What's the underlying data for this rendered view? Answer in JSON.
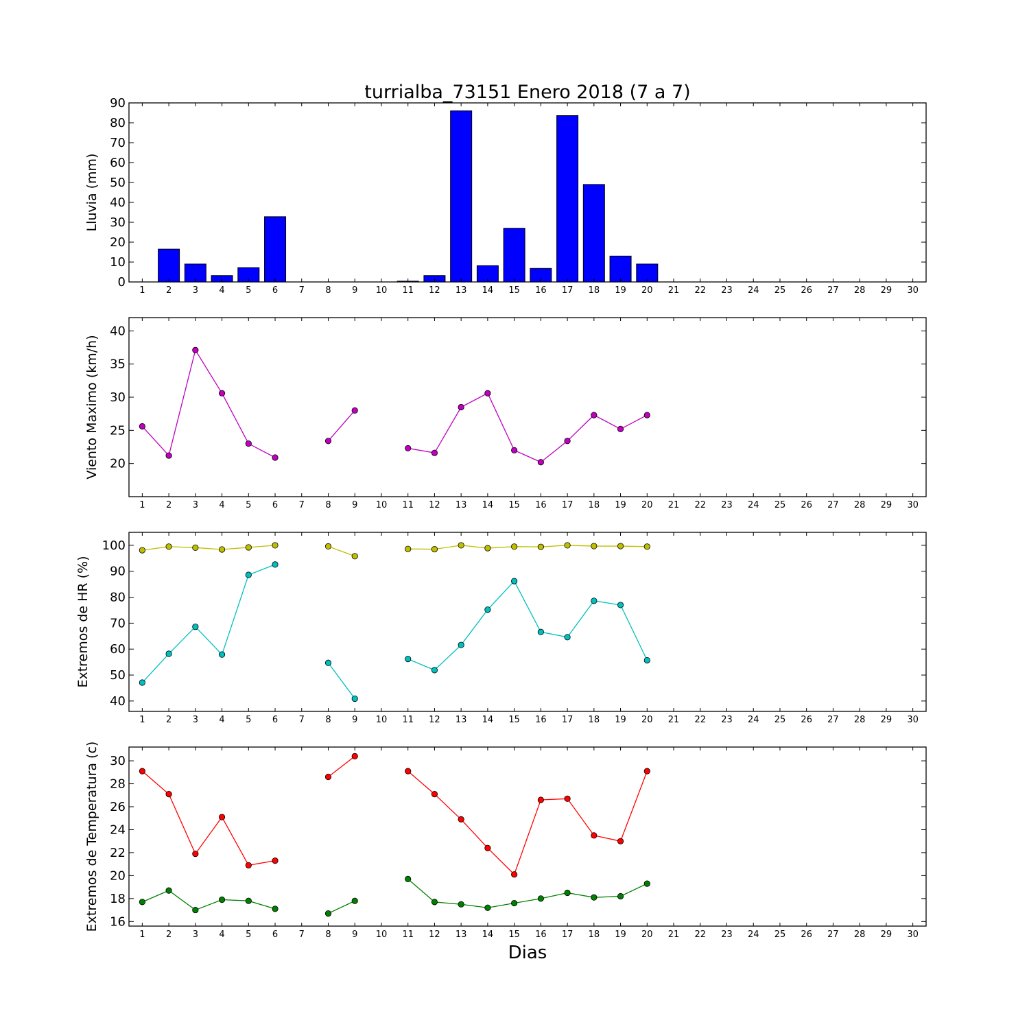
{
  "chart_data": [
    {
      "type": "bar",
      "title": "turrialba_73151 Enero 2018  (7 a 7)",
      "xlabel": "",
      "ylabel": "Lluvia (mm)",
      "x": [
        1,
        2,
        3,
        4,
        5,
        6,
        7,
        8,
        9,
        10,
        11,
        12,
        13,
        14,
        15,
        16,
        17,
        18,
        19,
        20,
        21,
        22,
        23,
        24,
        25,
        26,
        27,
        28,
        29,
        30
      ],
      "xticks": [
        "1",
        "2",
        "3",
        "4",
        "5",
        "6",
        "7",
        "8",
        "9",
        "10",
        "11",
        "12",
        "13",
        "14",
        "15",
        "16",
        "17",
        "18",
        "19",
        "20",
        "21",
        "22",
        "23",
        "24",
        "25",
        "26",
        "27",
        "28",
        "29",
        "30"
      ],
      "xlim": [
        0.5,
        30.5
      ],
      "ylim": [
        0,
        90
      ],
      "yticks": [
        0,
        10,
        20,
        30,
        40,
        50,
        60,
        70,
        80,
        90
      ],
      "series": [
        {
          "color": "#0000ff",
          "values": [
            0,
            16.5,
            9,
            3.2,
            7.2,
            32.8,
            0,
            0,
            0,
            0,
            0.4,
            3.2,
            86,
            8.2,
            27,
            6.8,
            83.6,
            49,
            13,
            9,
            null,
            null,
            null,
            null,
            null,
            null,
            null,
            null,
            null,
            null
          ]
        }
      ]
    },
    {
      "type": "line",
      "title": "",
      "xlabel": "",
      "ylabel": "Viento Maximo (km/h)",
      "x": [
        1,
        2,
        3,
        4,
        5,
        6,
        7,
        8,
        9,
        10,
        11,
        12,
        13,
        14,
        15,
        16,
        17,
        18,
        19,
        20
      ],
      "xticks": [
        "1",
        "2",
        "3",
        "4",
        "5",
        "6",
        "7",
        "8",
        "9",
        "10",
        "11",
        "12",
        "13",
        "14",
        "15",
        "16",
        "17",
        "18",
        "19",
        "20",
        "21",
        "22",
        "23",
        "24",
        "25",
        "26",
        "27",
        "28",
        "29",
        "30"
      ],
      "xlim": [
        0.5,
        30.5
      ],
      "ylim": [
        15,
        42
      ],
      "yticks": [
        20,
        25,
        30,
        35,
        40
      ],
      "series": [
        {
          "color": "#bf00bf",
          "values": [
            25.6,
            21.2,
            37.1,
            30.6,
            23.0,
            20.9,
            null,
            23.4,
            28.0,
            null,
            22.3,
            21.6,
            28.5,
            30.6,
            22.0,
            20.2,
            23.4,
            27.3,
            25.2,
            27.3
          ]
        }
      ]
    },
    {
      "type": "line",
      "title": "",
      "xlabel": "",
      "ylabel": "Extremos de HR (%)",
      "x": [
        1,
        2,
        3,
        4,
        5,
        6,
        7,
        8,
        9,
        10,
        11,
        12,
        13,
        14,
        15,
        16,
        17,
        18,
        19,
        20
      ],
      "xticks": [
        "1",
        "2",
        "3",
        "4",
        "5",
        "6",
        "7",
        "8",
        "9",
        "10",
        "11",
        "12",
        "13",
        "14",
        "15",
        "16",
        "17",
        "18",
        "19",
        "20",
        "21",
        "22",
        "23",
        "24",
        "25",
        "26",
        "27",
        "28",
        "29",
        "30"
      ],
      "xlim": [
        0.5,
        30.5
      ],
      "ylim": [
        36,
        105
      ],
      "yticks": [
        40,
        50,
        60,
        70,
        80,
        90,
        100
      ],
      "series": [
        {
          "color": "#bfbf00",
          "values": [
            98.1,
            99.5,
            99.1,
            98.4,
            99.2,
            100,
            null,
            99.6,
            95.8,
            null,
            98.6,
            98.5,
            100,
            98.9,
            99.5,
            99.4,
            100,
            99.7,
            99.7,
            99.5
          ]
        },
        {
          "color": "#00bfbf",
          "values": [
            47.1,
            58.2,
            68.6,
            57.9,
            88.6,
            92.6,
            null,
            54.7,
            40.9,
            null,
            56.2,
            51.9,
            61.6,
            75.2,
            86.2,
            66.6,
            64.6,
            78.6,
            77.0,
            55.7
          ]
        }
      ]
    },
    {
      "type": "line",
      "title": "",
      "xlabel": "Dias",
      "ylabel": "Extremos de Temperatura (c)",
      "x": [
        1,
        2,
        3,
        4,
        5,
        6,
        7,
        8,
        9,
        10,
        11,
        12,
        13,
        14,
        15,
        16,
        17,
        18,
        19,
        20
      ],
      "xticks": [
        "1",
        "2",
        "3",
        "4",
        "5",
        "6",
        "7",
        "8",
        "9",
        "10",
        "11",
        "12",
        "13",
        "14",
        "15",
        "16",
        "17",
        "18",
        "19",
        "20",
        "21",
        "22",
        "23",
        "24",
        "25",
        "26",
        "27",
        "28",
        "29",
        "30"
      ],
      "xlim": [
        0.5,
        30.5
      ],
      "ylim": [
        15.6,
        31.2
      ],
      "yticks": [
        16,
        18,
        20,
        22,
        24,
        26,
        28,
        30
      ],
      "series": [
        {
          "color": "#ff0000",
          "values": [
            29.1,
            27.1,
            21.9,
            25.1,
            20.9,
            21.3,
            null,
            28.6,
            30.4,
            null,
            29.1,
            27.1,
            24.9,
            22.4,
            20.1,
            26.6,
            26.7,
            23.5,
            23.0,
            29.1
          ]
        },
        {
          "color": "#008000",
          "values": [
            17.7,
            18.7,
            17.0,
            17.9,
            17.8,
            17.1,
            null,
            16.7,
            17.8,
            null,
            19.7,
            17.7,
            17.5,
            17.2,
            17.6,
            18.0,
            18.5,
            18.1,
            18.2,
            19.3
          ]
        }
      ]
    }
  ]
}
